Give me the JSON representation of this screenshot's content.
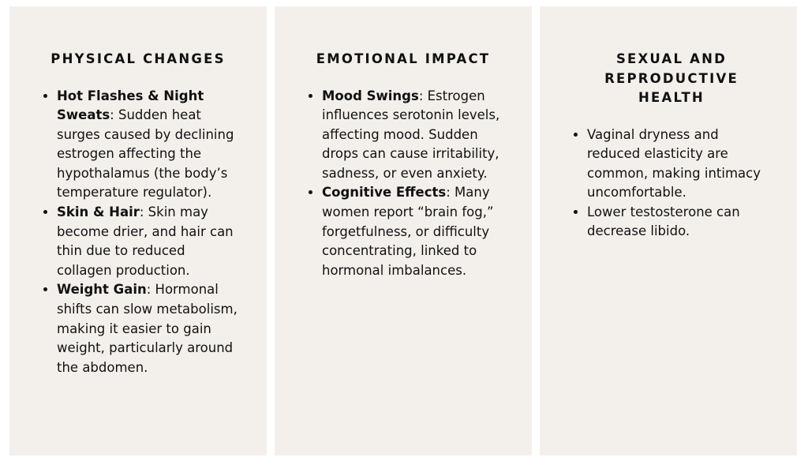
{
  "columns": [
    {
      "title": "PHYSICAL CHANGES",
      "items": [
        {
          "term": "Hot Flashes & Night Sweats",
          "text": ": Sudden heat surges caused by declining estrogen affecting the hypothalamus (the body’s temperature regulator)."
        },
        {
          "term": "Skin & Hair",
          "text": ": Skin may become drier, and hair can thin due to reduced collagen production."
        },
        {
          "term": "Weight Gain",
          "text": ": Hormonal shifts can slow metabolism, making it easier to gain weight, particularly around the abdomen."
        }
      ]
    },
    {
      "title": "EMOTIONAL IMPACT",
      "items": [
        {
          "term": "Mood Swings",
          "text": ": Estrogen influences serotonin levels, affecting mood. Sudden drops can cause irritability, sadness, or even anxiety."
        },
        {
          "term": "Cognitive Effects",
          "text": ": Many women report “brain fog,” forgetfulness, or difficulty concentrating, linked to hormonal imbalances."
        }
      ]
    },
    {
      "title": "SEXUAL AND REPRODUCTIVE HEALTH",
      "items": [
        {
          "text": "Vaginal dryness and reduced elasticity are common, making intimacy uncomfortable."
        },
        {
          "text": "Lower testosterone can decrease libido."
        }
      ]
    }
  ]
}
